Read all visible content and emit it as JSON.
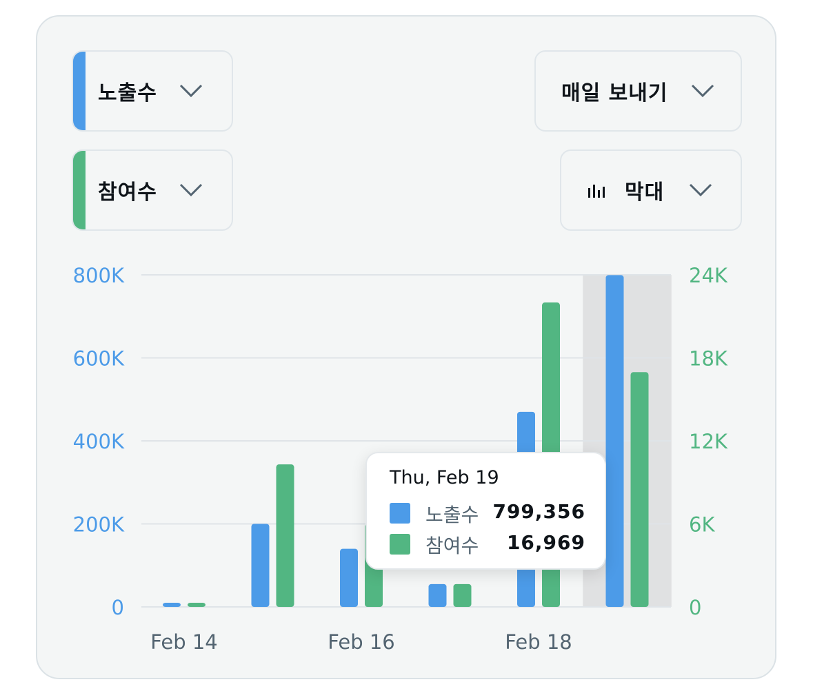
{
  "controls": {
    "metric1": {
      "label": "노출수",
      "color": "#4c9be8"
    },
    "metric2": {
      "label": "참여수",
      "color": "#52b682"
    },
    "export": {
      "label": "매일 보내기"
    },
    "chart_type": {
      "label": "막대",
      "icon": "bar-chart-icon"
    }
  },
  "tooltip": {
    "date": "Thu, Feb 19",
    "rows": [
      {
        "label": "노출수",
        "value": "799,356",
        "color": "#4c9be8"
      },
      {
        "label": "참여수",
        "value": "16,969",
        "color": "#52b682"
      }
    ]
  },
  "chart_data": {
    "type": "bar",
    "categories": [
      "Feb 14",
      "Feb 15",
      "Feb 16",
      "Feb 17",
      "Feb 18",
      "Feb 19"
    ],
    "x_tick_labels": [
      "Feb 14",
      "",
      "Feb 16",
      "",
      "Feb 18",
      ""
    ],
    "series": [
      {
        "name": "노출수",
        "axis": "left",
        "color": "#4c9be8",
        "values": [
          10000,
          200000,
          140000,
          55000,
          470000,
          799356
        ]
      },
      {
        "name": "참여수",
        "axis": "right",
        "color": "#52b682",
        "values": [
          300,
          10300,
          6000,
          1650,
          22000,
          16969
        ]
      }
    ],
    "y_left": {
      "ticks": [
        "0",
        "200K",
        "400K",
        "600K",
        "800K"
      ],
      "range": [
        0,
        800000
      ],
      "color": "#4c9be8"
    },
    "y_right": {
      "ticks": [
        "0",
        "6K",
        "12K",
        "18K",
        "24K"
      ],
      "range": [
        0,
        24000
      ],
      "color": "#52b682"
    },
    "highlighted_category": "Feb 19",
    "grid": true,
    "legend": "none"
  }
}
